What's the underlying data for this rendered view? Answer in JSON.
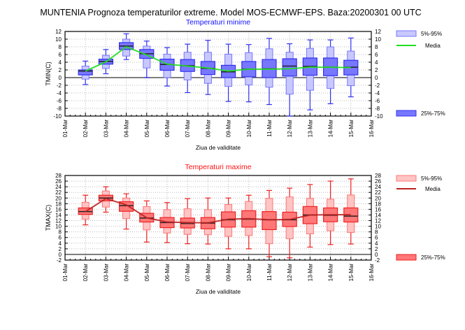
{
  "title": "MUNTENIA  Prognoza temperaturilor extreme.  Model MOS-ECMWF-EPS. Baza:20200301 00 UTC",
  "legend": {
    "p5_95": "5%-95%",
    "mean": "Media",
    "p25_75": "25%-75%"
  },
  "chart_data": [
    {
      "type": "box",
      "title": "Temperaturi minime",
      "xlabel": "Ziua de validitate",
      "ylabel": "TMIN(C)",
      "ylim": [
        -10,
        12
      ],
      "yticks": [
        -10,
        -8,
        -6,
        -4,
        -2,
        0,
        2,
        4,
        6,
        8,
        10,
        12
      ],
      "xticks": [
        "01-Mar",
        "02-Mar",
        "03-Mar",
        "04-Mar",
        "05-Mar",
        "06-Mar",
        "07-Mar",
        "08-Mar",
        "09-Mar",
        "10-Mar",
        "11-Mar",
        "12-Mar",
        "13-Mar",
        "14-Mar",
        "15-Mar",
        "16-Mar"
      ],
      "grid": true,
      "legend_position": "right",
      "colors": {
        "box": "#7777ff",
        "light": "#c8c8ff",
        "edge": "#3333ee",
        "mean": "#22dd22",
        "title": "#1111ff"
      },
      "categories": [
        "02-Mar",
        "03-Mar",
        "04-Mar",
        "05-Mar",
        "06-Mar",
        "07-Mar",
        "08-Mar",
        "09-Mar",
        "10-Mar",
        "11-Mar",
        "12-Mar",
        "13-Mar",
        "14-Mar",
        "15-Mar"
      ],
      "whisker_min": [
        -1.8,
        1.0,
        4.7,
        0,
        -2.2,
        -3.9,
        -4.4,
        -6.2,
        -6.3,
        -7.0,
        -10,
        -8.4,
        -6.8,
        -5.0
      ],
      "p5": [
        -0.4,
        2.4,
        5.6,
        2.5,
        0,
        -0.6,
        -1.5,
        -2.3,
        -1.9,
        -2.5,
        -4.3,
        -3.3,
        -2.8,
        -2.1
      ],
      "p25": [
        0.7,
        3.5,
        7.3,
        5.0,
        1.9,
        1.6,
        0.8,
        0,
        0.2,
        0,
        0.4,
        0.6,
        0.5,
        0.7
      ],
      "median": [
        1.7,
        4.2,
        8.2,
        6.2,
        3.4,
        3.1,
        2.4,
        1.5,
        2.2,
        2.3,
        3.0,
        2.9,
        2.7,
        2.7
      ],
      "p75": [
        2.0,
        4.8,
        9.1,
        7.3,
        4.8,
        4.7,
        4.2,
        3.2,
        4.2,
        4.7,
        4.9,
        5.1,
        5.1,
        4.5
      ],
      "p95": [
        3.0,
        5.8,
        10.0,
        8.2,
        6.1,
        6.6,
        6.6,
        6.1,
        6.5,
        7.5,
        6.6,
        7.6,
        8.0,
        6.9
      ],
      "whisker_max": [
        4.3,
        7.3,
        11.4,
        9.5,
        7.8,
        8.7,
        9.7,
        8.7,
        8.6,
        10.2,
        8.8,
        9.8,
        9.8,
        10.3
      ],
      "mean": [
        1.7,
        4.1,
        8.0,
        5.9,
        3.5,
        3.0,
        2.5,
        1.7,
        2.2,
        2.2,
        2.3,
        2.7,
        2.7,
        2.6
      ]
    },
    {
      "type": "box",
      "title": "Temperaturi maxime",
      "xlabel": "Ziua de validitate",
      "ylabel": "TMAX(C)",
      "ylim": [
        -2,
        28
      ],
      "yticks": [
        -2,
        0,
        2,
        4,
        6,
        8,
        10,
        12,
        14,
        16,
        18,
        20,
        22,
        24,
        26,
        28
      ],
      "xticks": [
        "01-Mar",
        "02-Mar",
        "03-Mar",
        "04-Mar",
        "05-Mar",
        "06-Mar",
        "07-Mar",
        "08-Mar",
        "09-Mar",
        "10-Mar",
        "11-Mar",
        "12-Mar",
        "13-Mar",
        "14-Mar",
        "15-Mar",
        "16-Mar"
      ],
      "grid": true,
      "legend_position": "right",
      "colors": {
        "box": "#ff7777",
        "light": "#ffc4c4",
        "edge": "#ee2222",
        "mean": "#bb2222",
        "title": "#ff1111"
      },
      "categories": [
        "02-Mar",
        "03-Mar",
        "04-Mar",
        "05-Mar",
        "06-Mar",
        "07-Mar",
        "08-Mar",
        "09-Mar",
        "10-Mar",
        "11-Mar",
        "12-Mar",
        "13-Mar",
        "14-Mar",
        "15-Mar"
      ],
      "whisker_min": [
        10.5,
        15,
        9,
        4.4,
        4.2,
        3.8,
        3.7,
        2,
        2,
        -0.8,
        -1.2,
        2.6,
        3.5,
        3.7
      ],
      "p5": [
        12.5,
        16.8,
        12.7,
        8.7,
        7.6,
        7.1,
        7,
        6.4,
        6.7,
        3.8,
        5.6,
        7.3,
        8.4,
        7.8
      ],
      "p25": [
        14.2,
        19,
        15.3,
        11.5,
        9.5,
        9.4,
        9.1,
        9.7,
        9.7,
        8.8,
        9.9,
        10.9,
        11.6,
        11.5
      ],
      "median": [
        15.2,
        20,
        17.3,
        12.9,
        11.3,
        11,
        11.1,
        12.3,
        12.5,
        12.3,
        12.3,
        14,
        13.9,
        13.6
      ],
      "p75": [
        16.5,
        21,
        18.7,
        14.6,
        13.1,
        12.9,
        13.1,
        15.1,
        15.5,
        15.2,
        15,
        17,
        16.5,
        16.5
      ],
      "p95": [
        18.5,
        22.5,
        20,
        17,
        15.9,
        16.2,
        15.9,
        17.7,
        18.8,
        19.9,
        20.4,
        19.9,
        19.6,
        21.1
      ],
      "whisker_max": [
        21,
        24,
        21.5,
        19,
        18.4,
        19.8,
        20,
        20,
        21,
        22.7,
        23.5,
        24.8,
        26,
        26.8
      ],
      "mean": [
        15.2,
        19.8,
        17.6,
        13,
        11.5,
        11.3,
        11.2,
        12.5,
        12.7,
        12.3,
        12.4,
        14,
        14.1,
        14.1
      ]
    }
  ]
}
